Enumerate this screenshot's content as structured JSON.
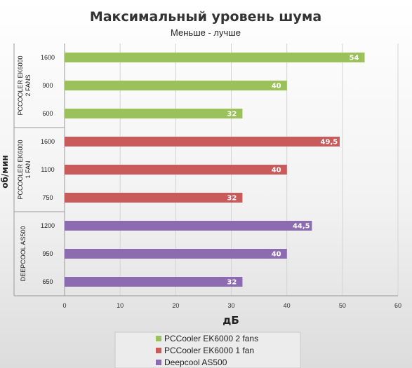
{
  "chart_data": {
    "type": "bar",
    "orientation": "horizontal",
    "title": "Максимальный уровень шума",
    "subtitle": "Меньше - лучше",
    "xlabel": "дБ",
    "ylabel": "об/мин",
    "xlim": [
      0,
      60
    ],
    "xticks": [
      "0",
      "10",
      "20",
      "30",
      "40",
      "50",
      "60"
    ],
    "grid": true,
    "legend_position": "bottom",
    "groups": [
      {
        "name": "PCCOOLER EK6000 2 FANS",
        "name_lines": [
          "PCCOOLER EK6000",
          "2 FANS"
        ],
        "series": "PCCooler EK6000 2 fans",
        "color": "#9bc15a",
        "categories": [
          "1600",
          "900",
          "600"
        ],
        "values": [
          54,
          40,
          32
        ],
        "labels": [
          "54",
          "40",
          "32"
        ]
      },
      {
        "name": "PCCOOLER EK6000 1 FAN",
        "name_lines": [
          "PCCOOLER EK6000",
          "1 FAN"
        ],
        "series": "PCCooler EK6000 1 fan",
        "color": "#c95b5b",
        "categories": [
          "1600",
          "1100",
          "750"
        ],
        "values": [
          49.5,
          40,
          32
        ],
        "labels": [
          "49,5",
          "40",
          "32"
        ]
      },
      {
        "name": "DEEPCOOL AS500",
        "name_lines": [
          "DEEPCOOL AS500"
        ],
        "series": "Deepcool AS500",
        "color": "#8c6bb1",
        "categories": [
          "1200",
          "950",
          "650"
        ],
        "values": [
          44.5,
          40,
          32
        ],
        "labels": [
          "44,5",
          "40",
          "32"
        ]
      }
    ],
    "legend": [
      {
        "name": "PCCooler EK6000 2 fans",
        "color": "#9bc15a"
      },
      {
        "name": "PCCooler EK6000 1 fan",
        "color": "#c95b5b"
      },
      {
        "name": "Deepcool AS500",
        "color": "#8c6bb1"
      }
    ]
  }
}
